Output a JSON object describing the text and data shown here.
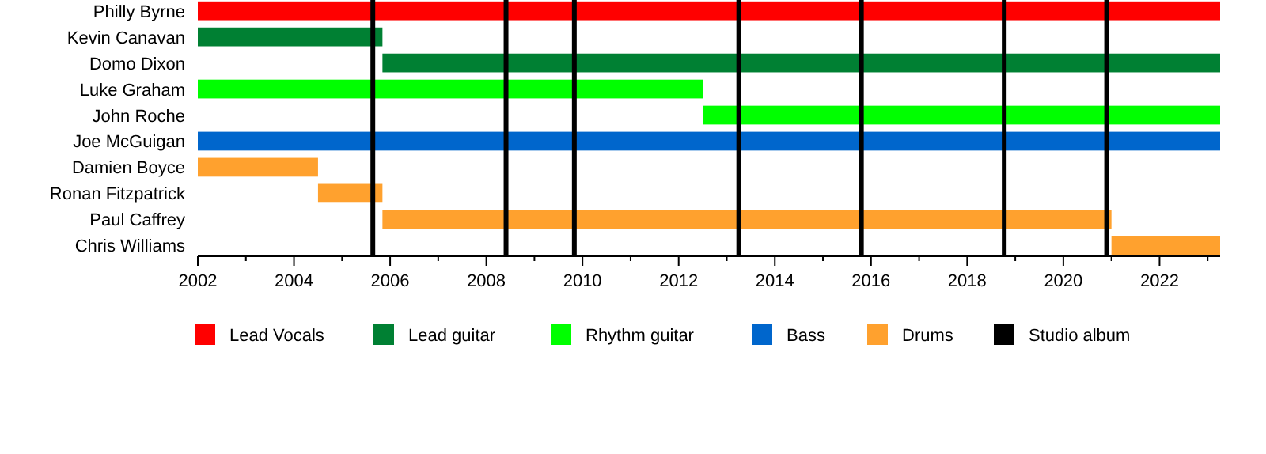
{
  "chart_data": {
    "type": "bar",
    "orientation": "horizontal",
    "categories": [
      "Philly Byrne",
      "Kevin Canavan",
      "Domo Dixon",
      "Luke Graham",
      "John Roche",
      "Joe McGuigan",
      "Damien Boyce",
      "Ronan Fitzpatrick",
      "Paul Caffrey",
      "Chris Williams"
    ],
    "series": [
      {
        "name": "Lead Vocals",
        "color": "#ff0000",
        "values": [
          21.26,
          null,
          null,
          null,
          null,
          null,
          null,
          null,
          null,
          null
        ],
        "base": [
          2002,
          null,
          null,
          null,
          null,
          null,
          null,
          null,
          null,
          null
        ]
      },
      {
        "name": "Lead guitar",
        "color": "#008033",
        "values": [
          null,
          3.84,
          17.42,
          null,
          null,
          null,
          null,
          null,
          null,
          null
        ],
        "base": [
          null,
          2002,
          2005.84,
          null,
          null,
          null,
          null,
          null,
          null,
          null
        ]
      },
      {
        "name": "Rhythm guitar",
        "color": "#00ff00",
        "values": [
          null,
          null,
          null,
          10.5,
          10.76,
          null,
          null,
          null,
          null,
          null
        ],
        "base": [
          null,
          null,
          null,
          2002,
          2012.5,
          null,
          null,
          null,
          null,
          null
        ]
      },
      {
        "name": "Bass",
        "color": "#0066cc",
        "values": [
          null,
          null,
          null,
          null,
          null,
          21.26,
          null,
          null,
          null,
          null
        ],
        "base": [
          null,
          null,
          null,
          null,
          null,
          2002,
          null,
          null,
          null,
          null
        ]
      },
      {
        "name": "Drums",
        "color": "#ffa12e",
        "values": [
          null,
          null,
          null,
          null,
          null,
          null,
          2.5,
          1.34,
          15.16,
          2.26
        ],
        "base": [
          null,
          null,
          null,
          null,
          null,
          null,
          2002,
          2004.5,
          2005.84,
          2021
        ]
      }
    ],
    "ref_lines": [
      {
        "axis": "x",
        "value": 2005.64,
        "label": "Studio album",
        "color": "#000000"
      },
      {
        "axis": "x",
        "value": 2008.41,
        "color": "#000000"
      },
      {
        "axis": "x",
        "value": 2009.83,
        "color": "#000000"
      },
      {
        "axis": "x",
        "value": 2013.25,
        "color": "#000000"
      },
      {
        "axis": "x",
        "value": 2015.8,
        "color": "#000000"
      },
      {
        "axis": "x",
        "value": 2018.77,
        "color": "#000000"
      },
      {
        "axis": "x",
        "value": 2020.9,
        "color": "#000000"
      }
    ],
    "xlim": [
      2002,
      2023.26
    ],
    "xticks": [
      2002,
      {
        "value": 2003,
        "label": null
      },
      2004,
      {
        "value": 2005,
        "label": null
      },
      2006,
      {
        "value": 2007,
        "label": null
      },
      2008,
      {
        "value": 2009,
        "label": null
      },
      2010,
      {
        "value": 2011,
        "label": null
      },
      2012,
      {
        "value": 2013,
        "label": null
      },
      2014,
      {
        "value": 2015,
        "label": null
      },
      2016,
      {
        "value": 2017,
        "label": null
      },
      2018,
      {
        "value": 2019,
        "label": null
      },
      2020,
      {
        "value": 2021,
        "label": null
      },
      2022,
      {
        "value": 2023,
        "label": null
      }
    ],
    "grid": false,
    "legend": "bottom"
  }
}
